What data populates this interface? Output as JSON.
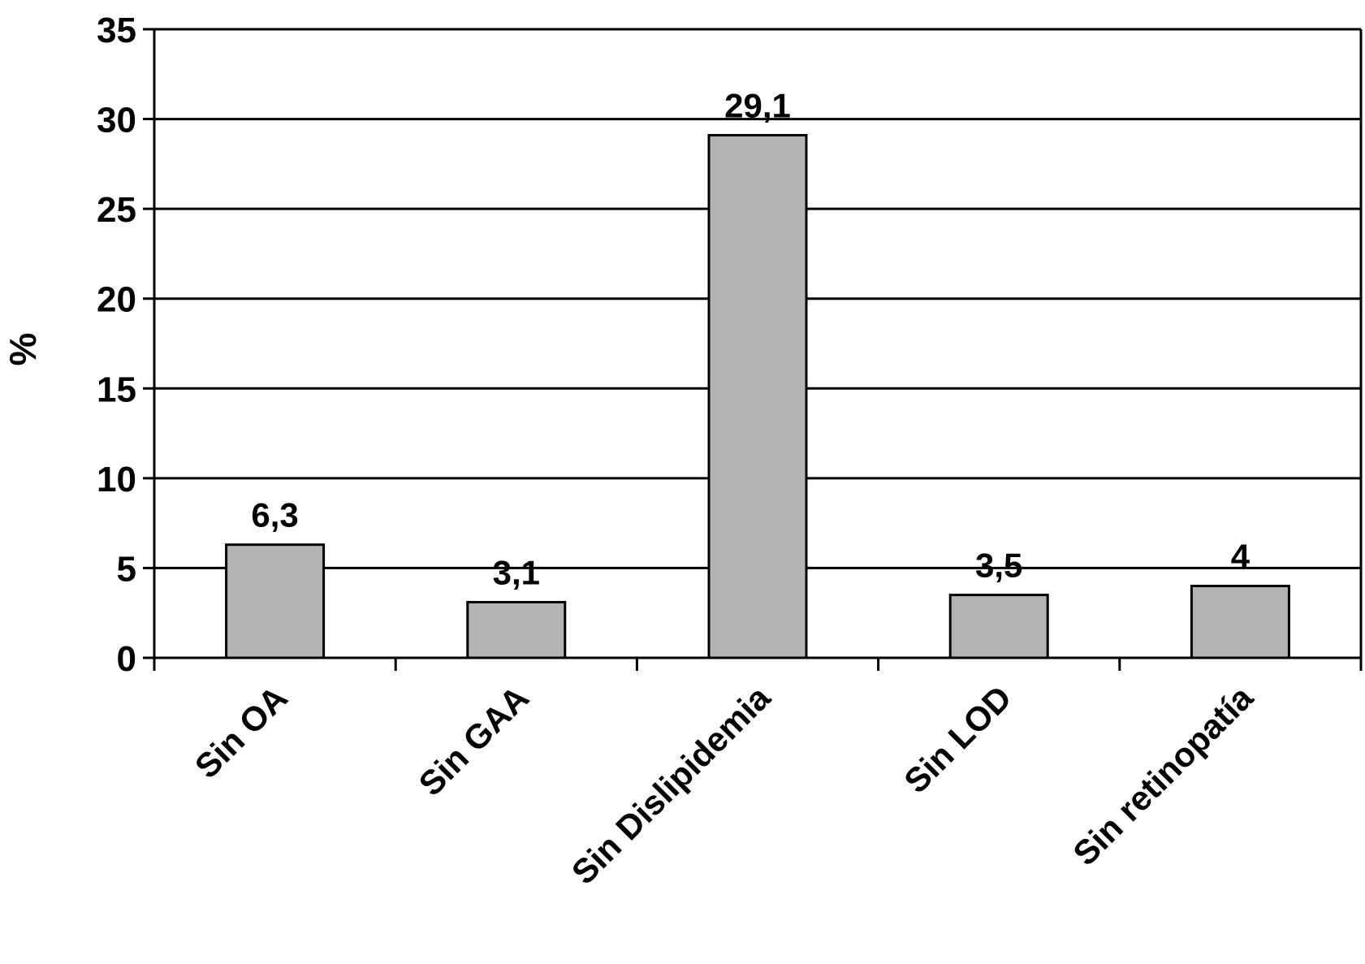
{
  "chart_data": {
    "type": "bar",
    "categories": [
      "Sin OA",
      "Sin GAA",
      "Sin Dislipidemia",
      "Sin LOD",
      "Sin retinopatía"
    ],
    "values": [
      6.3,
      3.1,
      29.1,
      3.5,
      4
    ],
    "value_labels": [
      "6,3",
      "3,1",
      "29,1",
      "3,5",
      "4"
    ],
    "title": "",
    "xlabel": "",
    "ylabel": "%",
    "ylim": [
      0,
      35
    ],
    "yticks": [
      0,
      5,
      10,
      15,
      20,
      25,
      30,
      35
    ],
    "ytick_labels": [
      "0",
      "5",
      "10",
      "15",
      "20",
      "25",
      "30",
      "35"
    ],
    "grid": true,
    "legend": "none",
    "colors": {
      "bar_fill": "#b3b3b3",
      "bar_stroke": "#000000",
      "grid": "#000000",
      "text": "#000000"
    }
  }
}
